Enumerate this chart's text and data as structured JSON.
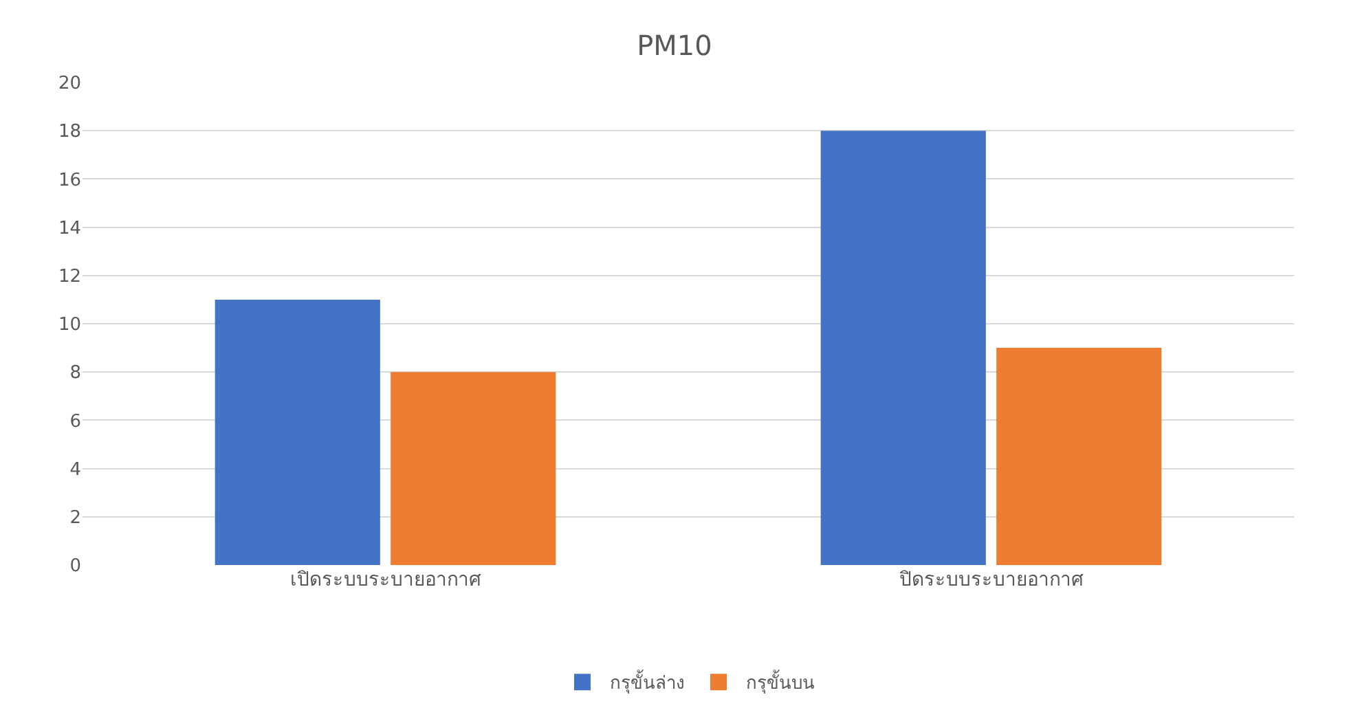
{
  "chart_data": {
    "type": "bar",
    "title": "PM10",
    "categories": [
      "เปิดระบบระบายอากาศ",
      "ปิดระบบระบายอากาศ"
    ],
    "series": [
      {
        "name": "กรุขั้นล่าง",
        "color": "#4472c4",
        "values": [
          11,
          18
        ]
      },
      {
        "name": "กรุขั้นบน",
        "color": "#ed7d31",
        "values": [
          8,
          9
        ]
      }
    ],
    "ylim": [
      0,
      20
    ],
    "yticks": [
      0,
      2,
      4,
      6,
      8,
      10,
      12,
      14,
      16,
      18,
      20
    ],
    "grid": "y",
    "legend": "bottom"
  }
}
